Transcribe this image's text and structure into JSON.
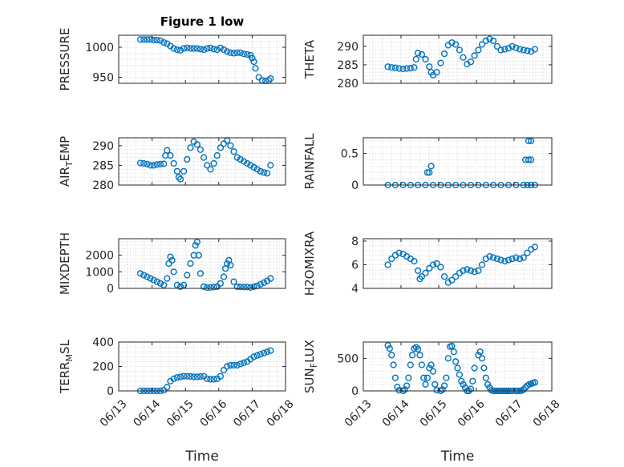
{
  "colors": {
    "marker": "#0072BD",
    "axis": "#262626",
    "grid": "#d9d9d9"
  },
  "chart_data": [
    {
      "type": "scatter",
      "title": "Figure 1 low",
      "ylabel": "PRESSURE",
      "xlim": [
        "06/13",
        "06/18"
      ],
      "ylim": [
        940,
        1020
      ],
      "yticks": [
        950,
        1000
      ],
      "xticks": [
        "06/13",
        "06/14",
        "06/15",
        "06/16",
        "06/17",
        "06/18"
      ],
      "show_xticklabels": false,
      "grid": true,
      "series": [
        {
          "x": [
            13.65,
            13.75,
            13.85,
            13.95,
            14.05,
            14.15,
            14.25,
            14.35,
            14.45,
            14.55,
            14.65,
            14.75,
            14.85,
            14.95,
            15.05,
            15.15,
            15.25,
            15.35,
            15.45,
            15.55,
            15.65,
            15.75,
            15.85,
            15.95,
            16.05,
            16.15,
            16.25,
            16.35,
            16.45,
            16.55,
            16.65,
            16.75,
            16.85,
            16.95,
            17.0,
            17.05,
            17.1,
            17.2,
            17.3,
            17.4,
            17.5,
            17.55
          ],
          "y": [
            1013,
            1013,
            1013,
            1013,
            1012,
            1012,
            1011,
            1008,
            1006,
            1002,
            998,
            996,
            995,
            998,
            999,
            998,
            998,
            998,
            997,
            996,
            998,
            999,
            997,
            996,
            999,
            996,
            993,
            991,
            990,
            991,
            991,
            989,
            988,
            987,
            982,
            976,
            965,
            950,
            945,
            944,
            945,
            948
          ]
        }
      ]
    },
    {
      "type": "scatter",
      "title": "",
      "ylabel": "THETA",
      "xlim": [
        "06/13",
        "06/18"
      ],
      "ylim": [
        280,
        293
      ],
      "yticks": [
        280,
        285,
        290
      ],
      "xticks": [
        "06/13",
        "06/14",
        "06/15",
        "06/16",
        "06/17",
        "06/18"
      ],
      "show_xticklabels": false,
      "grid": true,
      "series": [
        {
          "x": [
            13.65,
            13.75,
            13.85,
            13.95,
            14.05,
            14.15,
            14.25,
            14.35,
            14.4,
            14.45,
            14.55,
            14.65,
            14.75,
            14.8,
            14.85,
            14.95,
            15.05,
            15.15,
            15.25,
            15.35,
            15.45,
            15.55,
            15.65,
            15.75,
            15.85,
            15.95,
            16.05,
            16.15,
            16.25,
            16.35,
            16.45,
            16.55,
            16.65,
            16.75,
            16.85,
            16.95,
            17.05,
            17.15,
            17.25,
            17.35,
            17.45,
            17.55
          ],
          "y": [
            284.5,
            284.3,
            284.2,
            284.0,
            283.9,
            284.0,
            284.1,
            284.3,
            286.5,
            288.2,
            287.8,
            286.5,
            284.5,
            283.0,
            282.2,
            283.0,
            285.5,
            288.0,
            290.3,
            291.0,
            290.5,
            289.0,
            287.0,
            285.2,
            285.8,
            287.5,
            289.0,
            290.5,
            291.5,
            292.0,
            291.5,
            290.0,
            289.0,
            289.2,
            289.5,
            290.0,
            289.6,
            289.2,
            289.0,
            288.8,
            288.6,
            289.2
          ]
        }
      ]
    },
    {
      "type": "scatter",
      "title": "",
      "ylabel": "AIR_TEMP",
      "xlim": [
        "06/13",
        "06/18"
      ],
      "ylim": [
        280,
        292
      ],
      "yticks": [
        280,
        285,
        290
      ],
      "xticks": [
        "06/13",
        "06/14",
        "06/15",
        "06/16",
        "06/17",
        "06/18"
      ],
      "show_xticklabels": false,
      "grid": true,
      "series": [
        {
          "x": [
            13.65,
            13.75,
            13.85,
            13.95,
            14.05,
            14.15,
            14.25,
            14.35,
            14.4,
            14.45,
            14.55,
            14.65,
            14.75,
            14.8,
            14.85,
            14.95,
            15.05,
            15.15,
            15.25,
            15.35,
            15.45,
            15.55,
            15.65,
            15.75,
            15.85,
            15.95,
            16.05,
            16.15,
            16.25,
            16.35,
            16.45,
            16.55,
            16.65,
            16.75,
            16.85,
            16.95,
            17.05,
            17.15,
            17.25,
            17.35,
            17.45,
            17.55
          ],
          "y": [
            285.6,
            285.5,
            285.3,
            285.0,
            285.0,
            285.2,
            285.3,
            285.4,
            287.5,
            288.8,
            287.5,
            285.5,
            283.5,
            282.0,
            281.5,
            283.5,
            286.5,
            289.5,
            291.0,
            290.3,
            289.0,
            287.0,
            285.0,
            284.0,
            285.5,
            287.5,
            289.5,
            290.5,
            291.3,
            290.0,
            288.5,
            287.0,
            286.5,
            286.0,
            285.5,
            285.0,
            284.5,
            284.0,
            283.5,
            283.2,
            283.0,
            285.0
          ]
        }
      ]
    },
    {
      "type": "scatter",
      "title": "",
      "ylabel": "RAINFALL",
      "xlim": [
        "06/13",
        "06/18"
      ],
      "ylim": [
        0,
        0.75
      ],
      "yticks": [
        0,
        0.5
      ],
      "xticks": [
        "06/13",
        "06/14",
        "06/15",
        "06/16",
        "06/17",
        "06/18"
      ],
      "show_xticklabels": false,
      "grid": true,
      "series": [
        {
          "x": [
            13.65,
            13.85,
            14.05,
            14.25,
            14.45,
            14.65,
            14.85,
            15.05,
            15.25,
            15.45,
            15.65,
            15.85,
            16.05,
            16.25,
            16.45,
            16.65,
            16.85,
            17.05,
            17.25,
            17.35,
            17.45,
            14.7,
            14.75,
            14.8,
            17.3,
            17.38,
            17.45,
            17.38,
            17.45,
            17.55
          ],
          "y": [
            0,
            0,
            0,
            0,
            0,
            0,
            0,
            0,
            0,
            0,
            0,
            0,
            0,
            0,
            0,
            0,
            0,
            0,
            0,
            0,
            0,
            0.2,
            0.2,
            0.3,
            0.4,
            0.4,
            0.4,
            0.7,
            0.7,
            0
          ]
        }
      ]
    },
    {
      "type": "scatter",
      "title": "",
      "ylabel": "MIXDEPTH",
      "xlim": [
        "06/13",
        "06/18"
      ],
      "ylim": [
        0,
        3000
      ],
      "yticks": [
        0,
        1000,
        2000
      ],
      "xticks": [
        "06/13",
        "06/14",
        "06/15",
        "06/16",
        "06/17",
        "06/18"
      ],
      "show_xticklabels": false,
      "grid": true,
      "series": [
        {
          "x": [
            13.65,
            13.75,
            13.85,
            13.95,
            14.05,
            14.15,
            14.25,
            14.35,
            14.45,
            14.5,
            14.55,
            14.6,
            14.65,
            14.75,
            14.85,
            14.95,
            15.05,
            15.15,
            15.25,
            15.3,
            15.35,
            15.4,
            15.45,
            15.55,
            15.65,
            15.75,
            15.85,
            15.95,
            16.05,
            16.15,
            16.2,
            16.25,
            16.3,
            16.35,
            16.45,
            16.55,
            16.65,
            16.75,
            16.85,
            16.95,
            17.05,
            17.15,
            17.25,
            17.35,
            17.45,
            17.55
          ],
          "y": [
            900,
            800,
            700,
            600,
            500,
            400,
            300,
            200,
            600,
            1500,
            1900,
            1700,
            1000,
            200,
            100,
            200,
            800,
            1500,
            2000,
            2600,
            2800,
            2000,
            900,
            100,
            50,
            60,
            80,
            100,
            300,
            700,
            1200,
            1500,
            1700,
            1400,
            400,
            100,
            90,
            80,
            80,
            60,
            100,
            150,
            250,
            350,
            450,
            600
          ]
        }
      ]
    },
    {
      "type": "scatter",
      "title": "",
      "ylabel": "H2OMIXRA",
      "xlim": [
        "06/13",
        "06/18"
      ],
      "ylim": [
        4,
        8.2
      ],
      "yticks": [
        4,
        6,
        8
      ],
      "xticks": [
        "06/13",
        "06/14",
        "06/15",
        "06/16",
        "06/17",
        "06/18"
      ],
      "show_xticklabels": false,
      "grid": true,
      "series": [
        {
          "x": [
            13.65,
            13.75,
            13.85,
            13.95,
            14.05,
            14.15,
            14.25,
            14.35,
            14.45,
            14.5,
            14.55,
            14.65,
            14.75,
            14.85,
            14.95,
            15.05,
            15.15,
            15.25,
            15.35,
            15.45,
            15.55,
            15.65,
            15.75,
            15.85,
            15.95,
            16.05,
            16.15,
            16.25,
            16.35,
            16.45,
            16.55,
            16.65,
            16.75,
            16.85,
            16.95,
            17.05,
            17.15,
            17.25,
            17.35,
            17.45,
            17.55
          ],
          "y": [
            6.0,
            6.5,
            6.8,
            7.0,
            6.9,
            6.7,
            6.5,
            6.3,
            5.5,
            4.8,
            5.0,
            5.3,
            5.7,
            6.0,
            6.1,
            5.8,
            5.0,
            4.5,
            4.7,
            5.0,
            5.3,
            5.5,
            5.6,
            5.5,
            5.4,
            5.5,
            6.0,
            6.5,
            6.7,
            6.6,
            6.5,
            6.4,
            6.3,
            6.4,
            6.5,
            6.6,
            6.5,
            6.6,
            7.0,
            7.3,
            7.5
          ]
        }
      ]
    },
    {
      "type": "scatter",
      "title": "",
      "ylabel": "TERR_MSL",
      "xlim": [
        "06/13",
        "06/18"
      ],
      "ylim": [
        0,
        400
      ],
      "yticks": [
        0,
        200,
        400
      ],
      "xticks": [
        "06/13",
        "06/14",
        "06/15",
        "06/16",
        "06/17",
        "06/18"
      ],
      "xticklabels": [
        "06/13",
        "06/14",
        "06/15",
        "06/16",
        "06/17",
        "06/18"
      ],
      "xlabel": "Time",
      "grid": true,
      "series": [
        {
          "x": [
            13.65,
            13.75,
            13.85,
            13.95,
            14.05,
            14.15,
            14.25,
            14.35,
            14.45,
            14.55,
            14.65,
            14.75,
            14.85,
            14.95,
            15.05,
            15.15,
            15.25,
            15.35,
            15.45,
            15.55,
            15.65,
            15.75,
            15.85,
            15.95,
            16.05,
            16.15,
            16.25,
            16.35,
            16.45,
            16.55,
            16.65,
            16.75,
            16.85,
            16.95,
            17.05,
            17.15,
            17.25,
            17.35,
            17.45,
            17.55
          ],
          "y": [
            0,
            0,
            0,
            0,
            0,
            0,
            0,
            5,
            30,
            80,
            100,
            110,
            115,
            120,
            120,
            118,
            115,
            115,
            118,
            120,
            100,
            95,
            95,
            100,
            120,
            170,
            200,
            210,
            210,
            210,
            220,
            230,
            240,
            260,
            280,
            290,
            300,
            310,
            320,
            330
          ]
        }
      ]
    },
    {
      "type": "scatter",
      "title": "",
      "ylabel": "SUN_FLUX",
      "xlim": [
        "06/13",
        "06/18"
      ],
      "ylim": [
        0,
        750
      ],
      "yticks": [
        0,
        500
      ],
      "xticks": [
        "06/13",
        "06/14",
        "06/15",
        "06/16",
        "06/17",
        "06/18"
      ],
      "xticklabels": [
        "06/13",
        "06/14",
        "06/15",
        "06/16",
        "06/17",
        "06/18"
      ],
      "xlabel": "Time",
      "grid": true,
      "series": [
        {
          "x": [
            13.65,
            13.7,
            13.75,
            13.8,
            13.85,
            13.9,
            13.95,
            14.05,
            14.1,
            14.15,
            14.2,
            14.25,
            14.3,
            14.35,
            14.4,
            14.45,
            14.5,
            14.55,
            14.6,
            14.65,
            14.7,
            14.75,
            14.8,
            14.85,
            14.9,
            14.95,
            15.05,
            15.1,
            15.15,
            15.2,
            15.25,
            15.3,
            15.35,
            15.4,
            15.45,
            15.5,
            15.55,
            15.6,
            15.65,
            15.7,
            15.75,
            15.8,
            15.85,
            15.9,
            15.95,
            16.05,
            16.1,
            16.15,
            16.2,
            16.25,
            16.3,
            16.35,
            16.4,
            16.45,
            16.5,
            16.55,
            16.6,
            16.65,
            16.7,
            16.75,
            16.8,
            16.85,
            16.9,
            16.95,
            17.05,
            17.1,
            17.15,
            17.2,
            17.25,
            17.3,
            17.35,
            17.4,
            17.45,
            17.5,
            17.55
          ],
          "y": [
            700,
            650,
            550,
            400,
            200,
            60,
            10,
            0,
            20,
            80,
            200,
            400,
            550,
            650,
            670,
            640,
            550,
            400,
            200,
            100,
            200,
            350,
            400,
            300,
            100,
            10,
            0,
            20,
            80,
            200,
            500,
            680,
            690,
            600,
            450,
            350,
            250,
            150,
            100,
            50,
            0,
            0,
            30,
            150,
            350,
            550,
            600,
            500,
            350,
            200,
            100,
            50,
            10,
            0,
            0,
            0,
            0,
            0,
            0,
            0,
            0,
            0,
            0,
            0,
            0,
            0,
            0,
            5,
            20,
            50,
            80,
            100,
            110,
            120,
            130
          ]
        }
      ]
    }
  ]
}
